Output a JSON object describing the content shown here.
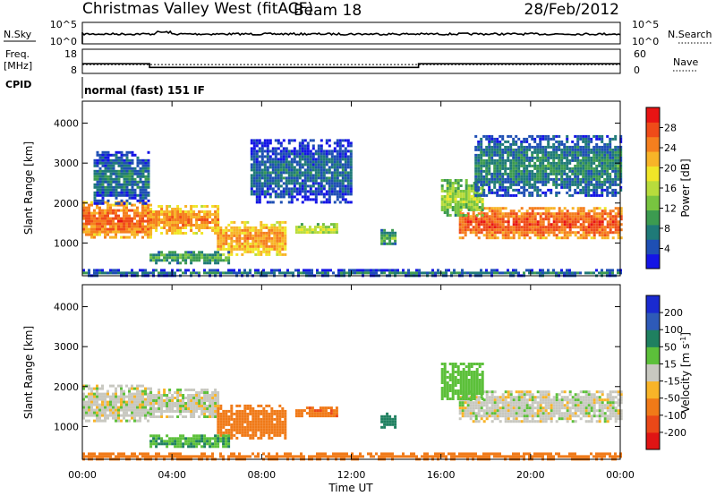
{
  "header": {
    "title": "Christmas Valley West (fitACF)",
    "beam": "Beam 18",
    "date": "28/Feb/2012"
  },
  "labels": {
    "nsky": "N.Sky",
    "nsearch": "N.Search",
    "freq_line1": "Freq.",
    "freq_line2": "[MHz]",
    "nave": "Nave",
    "cpid": "CPID",
    "cpid_value": "normal (fast) 151 IF"
  },
  "nsky_panel": {
    "left_ticks": [
      "10^5",
      "10^0"
    ],
    "right_ticks": [
      "10^5",
      "10^0"
    ]
  },
  "freq_panel": {
    "left_ticks": [
      18,
      8
    ],
    "right_ticks": [
      60,
      0
    ],
    "segments": [
      {
        "start_h": 0.0,
        "end_h": 3.0,
        "freq_mhz": 12.0
      },
      {
        "start_h": 3.0,
        "end_h": 15.0,
        "freq_mhz": 10.5
      },
      {
        "start_h": 15.0,
        "end_h": 24.0,
        "freq_mhz": 12.0
      }
    ],
    "nave_level": 22
  },
  "chart_data": [
    {
      "type": "heatmap",
      "name": "power",
      "xlabel": "",
      "ylabel": "Slant Range [km]",
      "xlim": [
        0,
        24
      ],
      "ylim": [
        180,
        4550
      ],
      "yticks": [
        1000,
        2000,
        3000,
        4000
      ],
      "colorbar": {
        "label": "Power [dB]",
        "ticks": [
          28,
          24,
          20,
          16,
          12,
          8,
          4
        ],
        "range": [
          0,
          32
        ],
        "colors": [
          "#1414e6",
          "#1e4fb4",
          "#1f7a78",
          "#3c9b50",
          "#78c440",
          "#b8dc3c",
          "#f0e628",
          "#f8b428",
          "#f57f1e",
          "#ef4b19",
          "#e81414"
        ]
      },
      "regions": [
        {
          "x0": 0.0,
          "x1": 3.0,
          "r0": 1150,
          "r1": 2050,
          "power": 27
        },
        {
          "x0": 3.0,
          "x1": 6.0,
          "r0": 1250,
          "r1": 1950,
          "power": 25
        },
        {
          "x0": 6.0,
          "x1": 9.0,
          "r0": 700,
          "r1": 1550,
          "power": 24
        },
        {
          "x0": 9.5,
          "x1": 11.3,
          "r0": 1250,
          "r1": 1500,
          "power": 18
        },
        {
          "x0": 13.3,
          "x1": 14.0,
          "r0": 950,
          "r1": 1350,
          "power": 12
        },
        {
          "x0": 16.8,
          "x1": 24.0,
          "r0": 1150,
          "r1": 1900,
          "power": 28
        },
        {
          "x0": 16.0,
          "x1": 17.8,
          "r0": 1700,
          "r1": 2600,
          "power": 16
        },
        {
          "x0": 0.5,
          "x1": 3.0,
          "r0": 2000,
          "r1": 3300,
          "power": 8
        },
        {
          "x0": 7.5,
          "x1": 12.0,
          "r0": 2000,
          "r1": 3600,
          "power": 7
        },
        {
          "x0": 17.5,
          "x1": 24.0,
          "r0": 2200,
          "r1": 3700,
          "power": 9
        },
        {
          "x0": 3.0,
          "x1": 6.5,
          "r0": 500,
          "r1": 800,
          "power": 12
        },
        {
          "x0": 0.0,
          "x1": 24.0,
          "r0": 200,
          "r1": 350,
          "power": 8
        }
      ]
    },
    {
      "type": "heatmap",
      "name": "velocity",
      "xlabel": "Time UT",
      "ylabel": "Slant Range [km]",
      "xlim": [
        0,
        24
      ],
      "ylim": [
        180,
        4550
      ],
      "xticks": [
        "00:00",
        "04:00",
        "08:00",
        "12:00",
        "16:00",
        "20:00",
        "00:00"
      ],
      "yticks": [
        1000,
        2000,
        3000,
        4000
      ],
      "colorbar": {
        "label": "Velocity [m s^-1]",
        "ticks": [
          200,
          100,
          50,
          15,
          -15,
          -50,
          -100,
          -200
        ],
        "colors": [
          "#1a2ad0",
          "#2e5ab8",
          "#1f8060",
          "#5cc03a",
          "#c8c8c0",
          "#f8b428",
          "#f07a18",
          "#ea4818",
          "#e01414"
        ]
      },
      "regions": [
        {
          "x0": 0.0,
          "x1": 3.0,
          "r0": 1150,
          "r1": 2050,
          "velocity": 0
        },
        {
          "x0": 3.0,
          "x1": 6.0,
          "r0": 1250,
          "r1": 1950,
          "velocity": 0
        },
        {
          "x0": 6.0,
          "x1": 9.0,
          "r0": 700,
          "r1": 1550,
          "velocity": -60
        },
        {
          "x0": 9.5,
          "x1": 11.3,
          "r0": 1250,
          "r1": 1500,
          "velocity": -70
        },
        {
          "x0": 13.3,
          "x1": 14.0,
          "r0": 950,
          "r1": 1350,
          "velocity": 40
        },
        {
          "x0": 16.8,
          "x1": 24.0,
          "r0": 1150,
          "r1": 1900,
          "velocity": 0
        },
        {
          "x0": 16.0,
          "x1": 17.8,
          "r0": 1700,
          "r1": 2600,
          "velocity": 20
        },
        {
          "x0": 3.0,
          "x1": 6.5,
          "r0": 500,
          "r1": 800,
          "velocity": 30
        },
        {
          "x0": 0.0,
          "x1": 24.0,
          "r0": 200,
          "r1": 350,
          "velocity": -60
        }
      ]
    }
  ]
}
